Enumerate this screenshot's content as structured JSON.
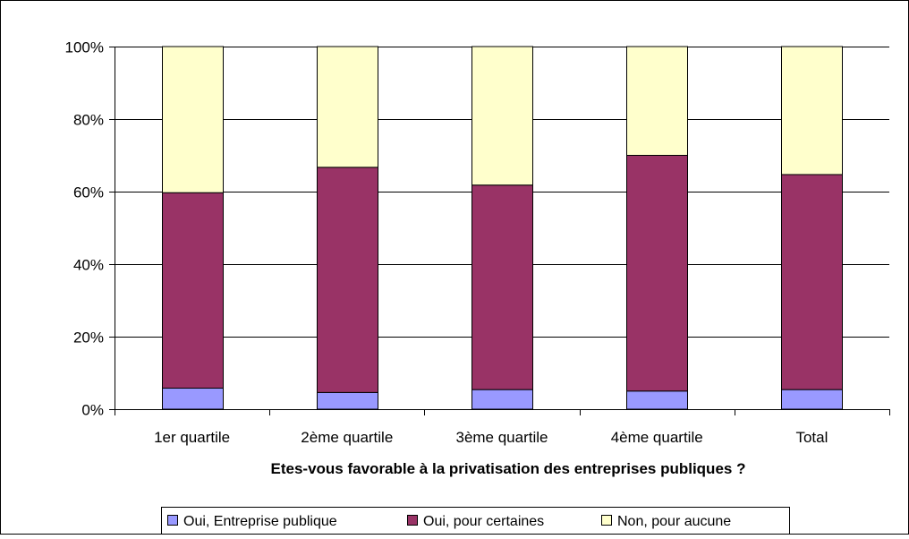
{
  "chart_data": {
    "type": "bar",
    "stacked": "percent",
    "categories": [
      "1er quartile",
      "2ème quartile",
      "3ème quartile",
      "4ème quartile",
      "Total"
    ],
    "series": [
      {
        "name": "Oui, Entreprise publique",
        "values": [
          5.8,
          4.6,
          5.4,
          5.0,
          5.4
        ],
        "color": "#9999ff"
      },
      {
        "name": "Oui, pour certaines",
        "values": [
          53.9,
          62.1,
          56.4,
          65.0,
          59.3
        ],
        "color": "#993366"
      },
      {
        "name": "Non, pour aucune",
        "values": [
          40.3,
          33.3,
          38.2,
          30.0,
          35.3
        ],
        "color": "#ffffcc"
      }
    ],
    "yticks": [
      "0%",
      "20%",
      "40%",
      "60%",
      "80%",
      "100%"
    ],
    "ylim": [
      0,
      100
    ],
    "xlabel": "Etes-vous favorable à la privatisation des entreprises publiques ?",
    "ylabel": "",
    "grid": true,
    "legend_position": "bottom"
  }
}
